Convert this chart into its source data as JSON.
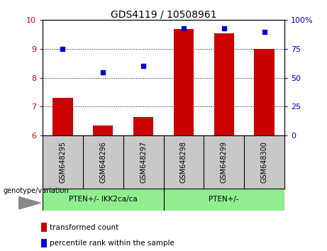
{
  "title": "GDS4119 / 10508961",
  "samples": [
    "GSM648295",
    "GSM648296",
    "GSM648297",
    "GSM648298",
    "GSM648299",
    "GSM648300"
  ],
  "bar_values": [
    7.3,
    6.35,
    6.65,
    9.7,
    9.55,
    9.0
  ],
  "percentile_values": [
    75,
    55,
    60,
    93,
    93,
    90
  ],
  "bar_bottom": 6.0,
  "ylim_left": [
    6,
    10
  ],
  "ylim_right": [
    0,
    100
  ],
  "yticks_left": [
    6,
    7,
    8,
    9,
    10
  ],
  "yticks_right": [
    0,
    25,
    50,
    75,
    100
  ],
  "ytick_labels_right": [
    "0",
    "25",
    "50",
    "75",
    "100%"
  ],
  "bar_color": "#cc0000",
  "dot_color": "#0000cc",
  "group1_label": "PTEN+/- IKK2ca/ca",
  "group2_label": "PTEN+/-",
  "group1_indices": [
    0,
    1,
    2
  ],
  "group2_indices": [
    3,
    4,
    5
  ],
  "group1_color": "#90ee90",
  "group2_color": "#90ee90",
  "sample_box_color": "#c8c8c8",
  "tick_label_color_left": "#cc0000",
  "tick_label_color_right": "#0000cc",
  "legend_red_label": "transformed count",
  "legend_blue_label": "percentile rank within the sample",
  "genotype_label": "genotype/variation",
  "plot_bg_color": "#ffffff",
  "bar_width": 0.5
}
